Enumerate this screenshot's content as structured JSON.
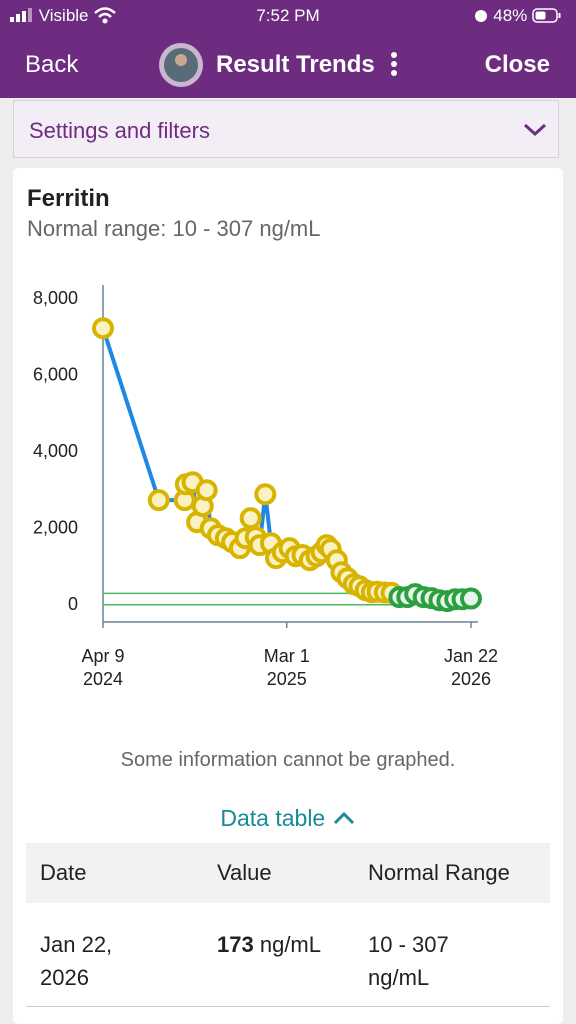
{
  "status_bar": {
    "carrier": "Visible",
    "time": "7:52 PM",
    "battery": "48%"
  },
  "nav": {
    "back": "Back",
    "title": "Result Trends",
    "close": "Close"
  },
  "settings": {
    "label": "Settings and filters"
  },
  "card": {
    "title": "Ferritin",
    "normal_range_text": "Normal range: 10 - 307 ng/mL"
  },
  "chart_data": {
    "type": "line",
    "series": [
      {
        "color": "#1e88e5",
        "out_of_range_color": "#d8b400",
        "in_range_color": "#2aa040",
        "x": [
          "2024-04-09",
          "2024-07-17",
          "2024-09-01",
          "2024-09-03",
          "2024-09-15",
          "2024-09-23",
          "2024-10-03",
          "2024-10-10",
          "2024-10-17",
          "2024-10-30",
          "2024-11-13",
          "2024-11-24",
          "2024-12-08",
          "2024-12-18",
          "2024-12-27",
          "2025-01-05",
          "2025-01-12",
          "2025-01-22",
          "2025-02-01",
          "2025-02-10",
          "2025-02-22",
          "2025-03-06",
          "2025-03-17",
          "2025-03-29",
          "2025-04-11",
          "2025-04-23",
          "2025-05-02",
          "2025-05-11",
          "2025-05-18",
          "2025-05-29",
          "2025-06-06",
          "2025-06-17",
          "2025-06-28",
          "2025-07-08",
          "2025-07-19",
          "2025-07-30",
          "2025-08-09",
          "2025-08-22",
          "2025-09-03",
          "2025-09-17",
          "2025-10-01",
          "2025-10-15",
          "2025-10-30",
          "2025-11-13",
          "2025-11-27",
          "2025-12-11",
          "2025-12-25",
          "2026-01-07",
          "2026-01-22"
        ],
        "values": [
          7240,
          2745,
          2745,
          3160,
          3215,
          2170,
          2590,
          3005,
          2010,
          1830,
          1750,
          1650,
          1490,
          1750,
          2275,
          1780,
          1570,
          2900,
          1620,
          1230,
          1385,
          1490,
          1280,
          1310,
          1175,
          1280,
          1385,
          1570,
          1465,
          1175,
          860,
          705,
          550,
          495,
          390,
          340,
          350,
          330,
          320,
          210,
          210,
          290,
          210,
          185,
          130,
          105,
          155,
          155,
          173
        ]
      }
    ],
    "normal_range": [
      10,
      307
    ],
    "xlim": [
      "2024-04-09",
      "2026-01-22"
    ],
    "xticks": [
      {
        "value": "2024-04-09",
        "label": [
          "Apr 9",
          "2024"
        ]
      },
      {
        "value": "2025-03-01",
        "label": [
          "Mar 1",
          "2025"
        ]
      },
      {
        "value": "2026-01-22",
        "label": [
          "Jan 22",
          "2026"
        ]
      }
    ],
    "ylim": [
      -440,
      8370
    ],
    "yticks": [
      0,
      {
        "value": 2000,
        "label": "2,000"
      },
      {
        "value": 4000,
        "label": "4,000"
      },
      {
        "value": 6000,
        "label": "6,000"
      },
      {
        "value": 8000,
        "label": "8,000"
      }
    ],
    "grid": false
  },
  "note": "Some information cannot be graphed.",
  "data_table": {
    "toggle": "Data table",
    "headers": [
      "Date",
      "Value",
      "Normal Range"
    ],
    "rows": [
      {
        "date": "Jan 22, 2026",
        "value": 173,
        "unit": "ng/mL",
        "range": "10 - 307 ng/mL"
      }
    ]
  }
}
